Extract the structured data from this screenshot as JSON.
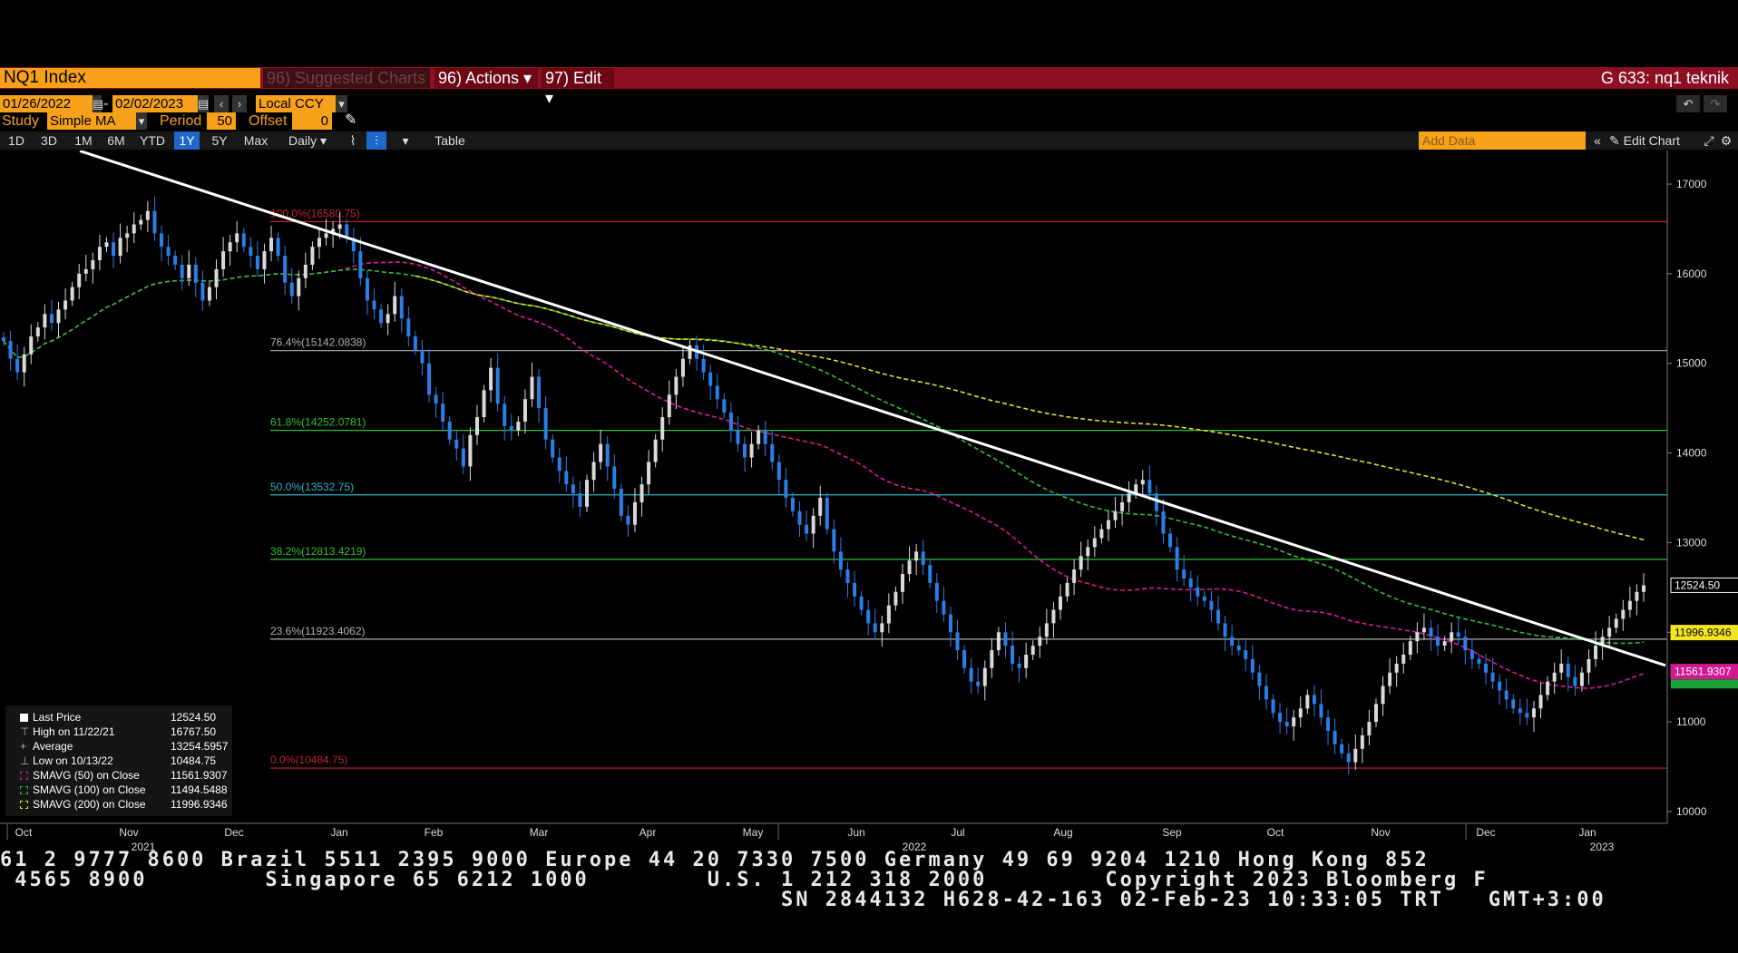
{
  "topbar": {
    "ticker": "NQ1 Index",
    "suggested": "96) Suggested Charts",
    "actions": "96) Actions ▾",
    "edit": "97) Edit ▾",
    "title": "G 633: nq1 teknik"
  },
  "toolbar": {
    "date_start": "01/26/2022",
    "date_end": "02/02/2023",
    "currency": "Local CCY",
    "study_label": "Study",
    "study_value": "Simple MA",
    "period_label": "Period",
    "period_value": "50",
    "offset_label": "Offset",
    "offset_value": "0",
    "ranges": [
      "1D",
      "3D",
      "1M",
      "6M",
      "YTD",
      "1Y",
      "5Y",
      "Max"
    ],
    "selected_range": "1Y",
    "frequency": "Daily ▾",
    "table_label": "Table",
    "add_data_placeholder": "Add Data",
    "edit_chart": "Edit Chart"
  },
  "legend": {
    "last_price_label": "Last Price",
    "last_price": "12524.50",
    "high_label": "High on 11/22/21",
    "high": "16767.50",
    "average_label": "Average",
    "average": "13254.5957",
    "low_label": "Low on 10/13/22",
    "low": "10484.75",
    "sma50_label": "SMAVG (50)  on Close",
    "sma50": "11561.9307",
    "sma100_label": "SMAVG (100)  on Close",
    "sma100": "11494.5488",
    "sma200_label": "SMAVG (200)  on Close",
    "sma200": "11996.9346"
  },
  "footer": {
    "line1": "61 2 9777 8600 Brazil 5511 2395 9000 Europe 44 20 7330 7500 Germany 49 69 9204 1210 Hong Kong 852",
    "line2": " 4565 8900        Singapore 65 6212 1000        U.S. 1 212 318 2000        Copyright 2023 Bloomberg F",
    "line3": "                                                     SN 2844132 H628-42-163 02-Feb-23 10:33:05 TRT   GMT+3:00"
  },
  "colors": {
    "up": "#d9d9d9",
    "down": "#2b7ee8",
    "sma50": "#e0179a",
    "sma100": "#2fbf3a",
    "sma200": "#e8e21e",
    "trend": "#ffffff",
    "fib_red": "#c2212f",
    "fib_green": "#2fbf3a",
    "fib_cyan": "#2bb5c9",
    "fib_gray": "#b0b0b0"
  },
  "chart_data": {
    "type": "candlestick",
    "title": "NQ1 Index",
    "ylim": [
      9900,
      17350
    ],
    "y_ticks": [
      10000,
      11000,
      12000,
      13000,
      14000,
      15000,
      16000,
      17000
    ],
    "x_months": [
      "Oct",
      "Nov",
      "Dec",
      "Jan",
      "Feb",
      "Mar",
      "Apr",
      "May",
      "Jun",
      "Jul",
      "Aug",
      "Sep",
      "Oct",
      "Nov",
      "Dec",
      "Jan"
    ],
    "x_year_labels": [
      "2021",
      "2022",
      "2023"
    ],
    "fib_levels": [
      {
        "label": "100.0%(16580.75)",
        "value": 16580.75,
        "color": "red"
      },
      {
        "label": "76.4%(15142.0838)",
        "value": 15142.0838,
        "color": "gray"
      },
      {
        "label": "61.8%(14252.0781)",
        "value": 14252.0781,
        "color": "green"
      },
      {
        "label": "50.0%(13532.75)",
        "value": 13532.75,
        "color": "cyan"
      },
      {
        "label": "38.2%(12813.4219)",
        "value": 12813.4219,
        "color": "green"
      },
      {
        "label": "23.6%(11923.4062)",
        "value": 11923.4062,
        "color": "gray"
      },
      {
        "label": "0.0%(10484.75)",
        "value": 10484.75,
        "color": "red"
      }
    ],
    "price_tags": [
      {
        "value": 12524.5,
        "text": "12524.50",
        "style": "white"
      },
      {
        "value": 11996.9346,
        "text": "11996.9346",
        "style": "yellow"
      },
      {
        "value": 11561.9307,
        "text": "11561.9307",
        "style": "magenta"
      }
    ],
    "closes": [
      15250,
      15050,
      14900,
      15100,
      15300,
      15400,
      15550,
      15450,
      15600,
      15700,
      15850,
      16000,
      16050,
      16150,
      16300,
      16350,
      16200,
      16400,
      16450,
      16550,
      16600,
      16700,
      16450,
      16300,
      16200,
      16100,
      15950,
      16100,
      15900,
      15700,
      15850,
      16050,
      16250,
      16350,
      16450,
      16300,
      16200,
      16050,
      16250,
      16400,
      16200,
      15900,
      15750,
      15950,
      16100,
      16300,
      16400,
      16450,
      16500,
      16550,
      16400,
      16250,
      15950,
      15700,
      15600,
      15450,
      15550,
      15750,
      15500,
      15300,
      15150,
      15000,
      14650,
      14550,
      14350,
      14150,
      14050,
      13850,
      14200,
      14400,
      14700,
      14950,
      14550,
      14300,
      14250,
      14350,
      14600,
      14850,
      14500,
      14150,
      13950,
      13800,
      13650,
      13550,
      13400,
      13700,
      13900,
      14100,
      13850,
      13600,
      13300,
      13200,
      13450,
      13650,
      13900,
      14150,
      14400,
      14650,
      14850,
      15050,
      15200,
      15050,
      14900,
      14750,
      14600,
      14450,
      14250,
      14100,
      13950,
      14100,
      14250,
      14100,
      13900,
      13700,
      13500,
      13350,
      13200,
      13100,
      13300,
      13500,
      13150,
      12900,
      12700,
      12550,
      12400,
      12250,
      12100,
      12000,
      12100,
      12300,
      12450,
      12650,
      12800,
      12900,
      12750,
      12550,
      12350,
      12200,
      12000,
      11800,
      11600,
      11450,
      11400,
      11600,
      11800,
      12000,
      11850,
      11650,
      11600,
      11750,
      11850,
      11950,
      12100,
      12250,
      12400,
      12550,
      12700,
      12850,
      12950,
      13050,
      13150,
      13250,
      13350,
      13450,
      13550,
      13650,
      13700,
      13550,
      13350,
      13100,
      12950,
      12700,
      12600,
      12500,
      12400,
      12350,
      12250,
      12100,
      11950,
      11850,
      11800,
      11700,
      11550,
      11400,
      11250,
      11100,
      11000,
      10950,
      11050,
      11150,
      11300,
      11200,
      11050,
      10900,
      10750,
      10650,
      10550,
      10700,
      10850,
      11000,
      11200,
      11400,
      11550,
      11650,
      11750,
      11900,
      12000,
      12050,
      11950,
      11850,
      11900,
      12000,
      11950,
      11800,
      11700,
      11650,
      11550,
      11450,
      11350,
      11250,
      11150,
      11100,
      11050,
      11150,
      11300,
      11450,
      11550,
      11650,
      11500,
      11400,
      11550,
      11700,
      11850,
      11950,
      12050,
      12150,
      12250,
      12350,
      12450,
      12524.5
    ]
  }
}
